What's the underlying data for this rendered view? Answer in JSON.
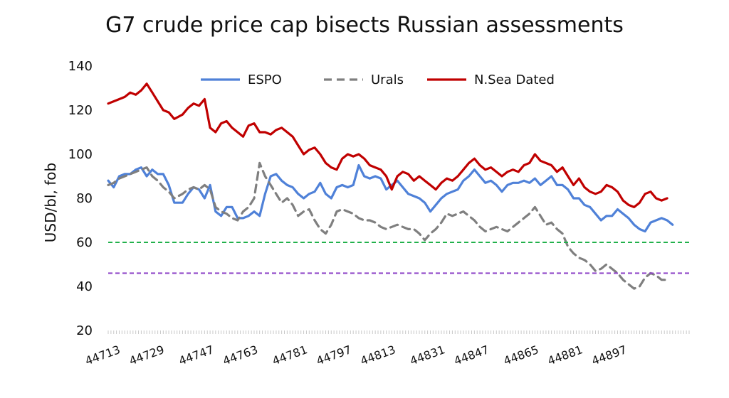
{
  "chart_data": {
    "type": "line",
    "title": "G7 crude price cap bisects Russian assessments",
    "ylabel": "USD/bl, fob",
    "xlabel": "",
    "ylim": [
      20,
      140
    ],
    "yticks": [
      20,
      40,
      60,
      80,
      100,
      120,
      140
    ],
    "xlim": [
      44713,
      44924
    ],
    "xticks": [
      44713,
      44729,
      44747,
      44763,
      44781,
      44797,
      44813,
      44831,
      44847,
      44865,
      44881,
      44897
    ],
    "legend_position": "top",
    "grid": false,
    "series": [
      {
        "name": "ESPO",
        "color": "#4f81d8",
        "style": "solid",
        "points": [
          [
            44713,
            88
          ],
          [
            44715,
            85
          ],
          [
            44717,
            90
          ],
          [
            44719,
            91
          ],
          [
            44721,
            91
          ],
          [
            44723,
            93
          ],
          [
            44725,
            94
          ],
          [
            44727,
            90
          ],
          [
            44729,
            93
          ],
          [
            44731,
            91
          ],
          [
            44733,
            91
          ],
          [
            44735,
            86
          ],
          [
            44737,
            78
          ],
          [
            44740,
            78
          ],
          [
            44742,
            82
          ],
          [
            44744,
            85
          ],
          [
            44746,
            84
          ],
          [
            44748,
            80
          ],
          [
            44750,
            86
          ],
          [
            44752,
            74
          ],
          [
            44754,
            72
          ],
          [
            44756,
            76
          ],
          [
            44758,
            76
          ],
          [
            44760,
            71
          ],
          [
            44762,
            71
          ],
          [
            44764,
            72
          ],
          [
            44766,
            74
          ],
          [
            44768,
            72
          ],
          [
            44770,
            82
          ],
          [
            44772,
            90
          ],
          [
            44774,
            91
          ],
          [
            44776,
            88
          ],
          [
            44778,
            86
          ],
          [
            44780,
            85
          ],
          [
            44782,
            82
          ],
          [
            44784,
            80
          ],
          [
            44786,
            82
          ],
          [
            44788,
            83
          ],
          [
            44790,
            87
          ],
          [
            44792,
            82
          ],
          [
            44794,
            80
          ],
          [
            44796,
            85
          ],
          [
            44798,
            86
          ],
          [
            44800,
            85
          ],
          [
            44802,
            86
          ],
          [
            44804,
            95
          ],
          [
            44806,
            90
          ],
          [
            44808,
            89
          ],
          [
            44810,
            90
          ],
          [
            44812,
            89
          ],
          [
            44814,
            84
          ],
          [
            44816,
            86
          ],
          [
            44818,
            88
          ],
          [
            44820,
            85
          ],
          [
            44822,
            82
          ],
          [
            44824,
            81
          ],
          [
            44826,
            80
          ],
          [
            44828,
            78
          ],
          [
            44830,
            74
          ],
          [
            44832,
            77
          ],
          [
            44834,
            80
          ],
          [
            44836,
            82
          ],
          [
            44838,
            83
          ],
          [
            44840,
            84
          ],
          [
            44842,
            88
          ],
          [
            44844,
            90
          ],
          [
            44846,
            93
          ],
          [
            44848,
            90
          ],
          [
            44850,
            87
          ],
          [
            44852,
            88
          ],
          [
            44854,
            86
          ],
          [
            44856,
            83
          ],
          [
            44858,
            86
          ],
          [
            44860,
            87
          ],
          [
            44862,
            87
          ],
          [
            44864,
            88
          ],
          [
            44866,
            87
          ],
          [
            44868,
            89
          ],
          [
            44870,
            86
          ],
          [
            44872,
            88
          ],
          [
            44874,
            90
          ],
          [
            44876,
            86
          ],
          [
            44878,
            86
          ],
          [
            44880,
            84
          ],
          [
            44882,
            80
          ],
          [
            44884,
            80
          ],
          [
            44886,
            77
          ],
          [
            44888,
            76
          ],
          [
            44890,
            73
          ],
          [
            44892,
            70
          ],
          [
            44894,
            72
          ],
          [
            44896,
            72
          ],
          [
            44898,
            75
          ],
          [
            44900,
            73
          ],
          [
            44902,
            71
          ],
          [
            44904,
            68
          ],
          [
            44906,
            66
          ],
          [
            44908,
            65
          ],
          [
            44910,
            69
          ],
          [
            44912,
            70
          ],
          [
            44914,
            71
          ],
          [
            44916,
            70
          ],
          [
            44918,
            68
          ]
        ]
      },
      {
        "name": "Urals",
        "color": "#7f7f7f",
        "style": "dashed",
        "points": [
          [
            44713,
            86
          ],
          [
            44715,
            87
          ],
          [
            44717,
            89
          ],
          [
            44719,
            90
          ],
          [
            44721,
            91
          ],
          [
            44723,
            92
          ],
          [
            44725,
            93
          ],
          [
            44727,
            94
          ],
          [
            44729,
            90
          ],
          [
            44731,
            88
          ],
          [
            44733,
            85
          ],
          [
            44735,
            83
          ],
          [
            44737,
            80
          ],
          [
            44740,
            82
          ],
          [
            44742,
            84
          ],
          [
            44744,
            85
          ],
          [
            44746,
            84
          ],
          [
            44748,
            86
          ],
          [
            44750,
            84
          ],
          [
            44752,
            76
          ],
          [
            44754,
            74
          ],
          [
            44756,
            73
          ],
          [
            44758,
            71
          ],
          [
            44760,
            70
          ],
          [
            44762,
            74
          ],
          [
            44764,
            76
          ],
          [
            44766,
            80
          ],
          [
            44768,
            96
          ],
          [
            44770,
            90
          ],
          [
            44772,
            86
          ],
          [
            44774,
            82
          ],
          [
            44776,
            78
          ],
          [
            44778,
            80
          ],
          [
            44780,
            77
          ],
          [
            44782,
            72
          ],
          [
            44784,
            74
          ],
          [
            44786,
            75
          ],
          [
            44788,
            70
          ],
          [
            44790,
            66
          ],
          [
            44792,
            64
          ],
          [
            44794,
            68
          ],
          [
            44796,
            74
          ],
          [
            44798,
            75
          ],
          [
            44800,
            74
          ],
          [
            44802,
            73
          ],
          [
            44804,
            71
          ],
          [
            44806,
            70
          ],
          [
            44808,
            70
          ],
          [
            44810,
            69
          ],
          [
            44812,
            67
          ],
          [
            44814,
            66
          ],
          [
            44816,
            67
          ],
          [
            44818,
            68
          ],
          [
            44820,
            67
          ],
          [
            44822,
            66
          ],
          [
            44824,
            66
          ],
          [
            44826,
            64
          ],
          [
            44828,
            61
          ],
          [
            44830,
            64
          ],
          [
            44832,
            66
          ],
          [
            44834,
            69
          ],
          [
            44836,
            73
          ],
          [
            44838,
            72
          ],
          [
            44840,
            73
          ],
          [
            44842,
            74
          ],
          [
            44844,
            72
          ],
          [
            44846,
            70
          ],
          [
            44848,
            67
          ],
          [
            44850,
            65
          ],
          [
            44852,
            66
          ],
          [
            44854,
            67
          ],
          [
            44856,
            66
          ],
          [
            44858,
            65
          ],
          [
            44860,
            67
          ],
          [
            44862,
            69
          ],
          [
            44864,
            71
          ],
          [
            44866,
            73
          ],
          [
            44868,
            76
          ],
          [
            44870,
            72
          ],
          [
            44872,
            68
          ],
          [
            44874,
            69
          ],
          [
            44876,
            66
          ],
          [
            44878,
            64
          ],
          [
            44880,
            58
          ],
          [
            44882,
            55
          ],
          [
            44884,
            53
          ],
          [
            44886,
            52
          ],
          [
            44888,
            50
          ],
          [
            44890,
            47
          ],
          [
            44892,
            48
          ],
          [
            44894,
            50
          ],
          [
            44896,
            48
          ],
          [
            44898,
            46
          ],
          [
            44900,
            43
          ],
          [
            44902,
            41
          ],
          [
            44904,
            39
          ],
          [
            44906,
            40
          ],
          [
            44908,
            44
          ],
          [
            44910,
            46
          ],
          [
            44912,
            45
          ],
          [
            44914,
            43
          ],
          [
            44916,
            43
          ]
        ]
      },
      {
        "name": "N.Sea Dated",
        "color": "#c00000",
        "style": "solid",
        "points": [
          [
            44713,
            123
          ],
          [
            44715,
            124
          ],
          [
            44717,
            125
          ],
          [
            44719,
            126
          ],
          [
            44721,
            128
          ],
          [
            44723,
            127
          ],
          [
            44725,
            129
          ],
          [
            44727,
            132
          ],
          [
            44729,
            128
          ],
          [
            44731,
            124
          ],
          [
            44733,
            120
          ],
          [
            44735,
            119
          ],
          [
            44737,
            116
          ],
          [
            44740,
            118
          ],
          [
            44742,
            121
          ],
          [
            44744,
            123
          ],
          [
            44746,
            122
          ],
          [
            44748,
            125
          ],
          [
            44750,
            112
          ],
          [
            44752,
            110
          ],
          [
            44754,
            114
          ],
          [
            44756,
            115
          ],
          [
            44758,
            112
          ],
          [
            44760,
            110
          ],
          [
            44762,
            108
          ],
          [
            44764,
            113
          ],
          [
            44766,
            114
          ],
          [
            44768,
            110
          ],
          [
            44770,
            110
          ],
          [
            44772,
            109
          ],
          [
            44774,
            111
          ],
          [
            44776,
            112
          ],
          [
            44778,
            110
          ],
          [
            44780,
            108
          ],
          [
            44782,
            104
          ],
          [
            44784,
            100
          ],
          [
            44786,
            102
          ],
          [
            44788,
            103
          ],
          [
            44790,
            100
          ],
          [
            44792,
            96
          ],
          [
            44794,
            94
          ],
          [
            44796,
            93
          ],
          [
            44798,
            98
          ],
          [
            44800,
            100
          ],
          [
            44802,
            99
          ],
          [
            44804,
            100
          ],
          [
            44806,
            98
          ],
          [
            44808,
            95
          ],
          [
            44810,
            94
          ],
          [
            44812,
            93
          ],
          [
            44814,
            90
          ],
          [
            44816,
            84
          ],
          [
            44818,
            90
          ],
          [
            44820,
            92
          ],
          [
            44822,
            91
          ],
          [
            44824,
            88
          ],
          [
            44826,
            90
          ],
          [
            44828,
            88
          ],
          [
            44830,
            86
          ],
          [
            44832,
            84
          ],
          [
            44834,
            87
          ],
          [
            44836,
            89
          ],
          [
            44838,
            88
          ],
          [
            44840,
            90
          ],
          [
            44842,
            93
          ],
          [
            44844,
            96
          ],
          [
            44846,
            98
          ],
          [
            44848,
            95
          ],
          [
            44850,
            93
          ],
          [
            44852,
            94
          ],
          [
            44854,
            92
          ],
          [
            44856,
            90
          ],
          [
            44858,
            92
          ],
          [
            44860,
            93
          ],
          [
            44862,
            92
          ],
          [
            44864,
            95
          ],
          [
            44866,
            96
          ],
          [
            44868,
            100
          ],
          [
            44870,
            97
          ],
          [
            44872,
            96
          ],
          [
            44874,
            95
          ],
          [
            44876,
            92
          ],
          [
            44878,
            94
          ],
          [
            44880,
            90
          ],
          [
            44882,
            86
          ],
          [
            44884,
            89
          ],
          [
            44886,
            85
          ],
          [
            44888,
            83
          ],
          [
            44890,
            82
          ],
          [
            44892,
            83
          ],
          [
            44894,
            86
          ],
          [
            44896,
            85
          ],
          [
            44898,
            83
          ],
          [
            44900,
            79
          ],
          [
            44902,
            77
          ],
          [
            44904,
            76
          ],
          [
            44906,
            78
          ],
          [
            44908,
            82
          ],
          [
            44910,
            83
          ],
          [
            44912,
            80
          ],
          [
            44914,
            79
          ],
          [
            44916,
            80
          ]
        ]
      },
      {
        "name": "",
        "color": "#22b14c",
        "style": "dashed",
        "points": [
          [
            44713,
            60
          ],
          [
            44924,
            60
          ]
        ]
      },
      {
        "name": "",
        "color": "#8e44c8",
        "style": "dashed",
        "points": [
          [
            44713,
            46
          ],
          [
            44924,
            46
          ]
        ]
      }
    ]
  }
}
